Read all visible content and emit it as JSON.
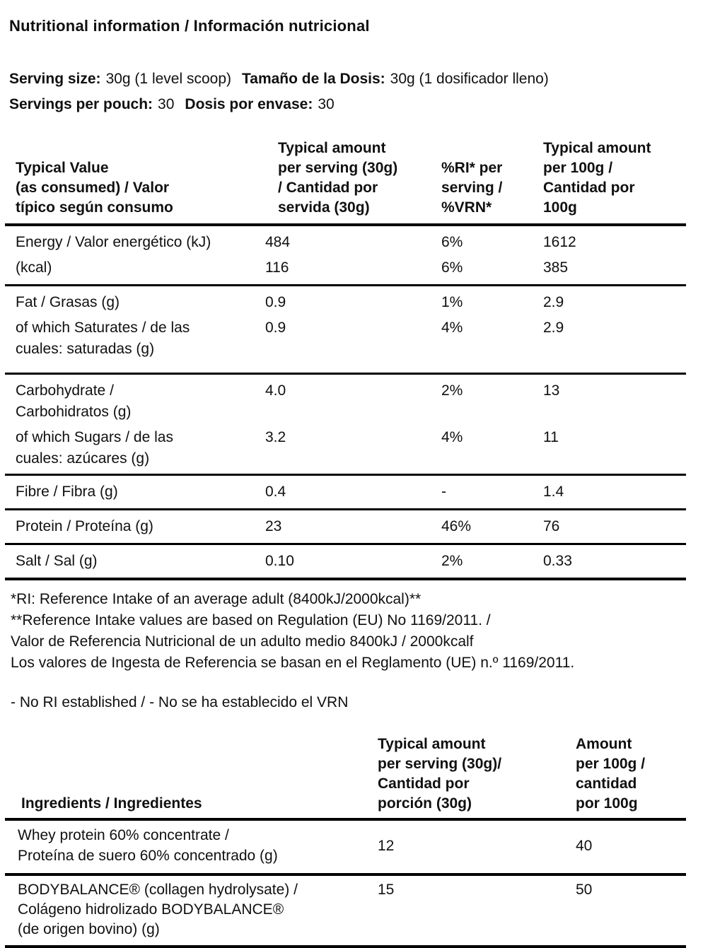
{
  "title": "Nutritional information / Información nutricional",
  "serving": {
    "size_label_en": "Serving size:",
    "size_value_en": "30g (1 level scoop)",
    "size_label_es": "Tamaño de la Dosis:",
    "size_value_es": "30g (1 dosificador lleno)",
    "per_pouch_label_en": "Servings per pouch:",
    "per_pouch_value_en": "30",
    "per_pouch_label_es": "Dosis por envase:",
    "per_pouch_value_es": "30"
  },
  "nutrition_table": {
    "headers": {
      "typical_value": "Typical Value\n(as consumed) / Valor\ntípico según consumo",
      "per_serving": "Typical amount\nper serving (30g)\n/ Cantidad por\nservida (30g)",
      "ri": "%RI* per\nserving /\n%VRN*",
      "per_100g": "Typical amount\nper 100g /\nCantidad por\n100g"
    },
    "rows": [
      {
        "label": "Energy / Valor energético (kJ)",
        "per_serving": "484",
        "ri": "6%",
        "per_100g": "1612"
      },
      {
        "label": "(kcal)",
        "per_serving": "116",
        "ri": "6%",
        "per_100g": "385"
      },
      {
        "label": "Fat / Grasas (g)",
        "per_serving": "0.9",
        "ri": "1%",
        "per_100g": "2.9"
      },
      {
        "label": "of which Saturates / de las\ncuales: saturadas (g)",
        "per_serving": "0.9",
        "ri": "4%",
        "per_100g": "2.9"
      },
      {
        "label": "Carbohydrate /\nCarbohidratos  (g)",
        "per_serving": "4.0",
        "ri": "2%",
        "per_100g": "13"
      },
      {
        "label": "of which Sugars / de las\ncuales: azúcares (g)",
        "per_serving": "3.2",
        "ri": "4%",
        "per_100g": "11"
      },
      {
        "label": "Fibre / Fibra (g)",
        "per_serving": "0.4",
        "ri": "-",
        "per_100g": "1.4"
      },
      {
        "label": "Protein / Proteína (g)",
        "per_serving": "23",
        "ri": "46%",
        "per_100g": "76"
      },
      {
        "label": "Salt / Sal (g)",
        "per_serving": "0.10",
        "ri": "2%",
        "per_100g": "0.33"
      }
    ]
  },
  "footnotes": "*RI: Reference Intake of an average adult (8400kJ/2000kcal)**\n**Reference Intake values are based on Regulation (EU) No 1169/2011. /\nValor de Referencia Nutricional de un adulto medio 8400kJ / 2000kcalf\nLos valores de Ingesta de Referencia se basan en el Reglamento (UE) n.º 1169/2011.",
  "no_ri_note": "- No RI established / - No se ha establecido el VRN",
  "ingredients_table": {
    "headers": {
      "ingredients": "Ingredients / Ingredientes",
      "per_serving": "Typical amount\nper serving (30g)/\nCantidad por\nporción (30g)",
      "per_100g": "Amount\nper 100g /\ncantidad\npor 100g"
    },
    "rows": [
      {
        "label": "Whey protein 60% concentrate /\nProteína de suero 60% concentrado (g)",
        "per_serving": "12",
        "per_100g": "40"
      },
      {
        "label": "BODYBALANCE® (collagen hydrolysate) /\nColágeno hidrolizado BODYBALANCE®\n(de origen bovino) (g)",
        "per_serving": "15",
        "per_100g": "50"
      }
    ]
  },
  "colors": {
    "background": "#ffffff",
    "text": "#101010",
    "rule": "#000000"
  }
}
